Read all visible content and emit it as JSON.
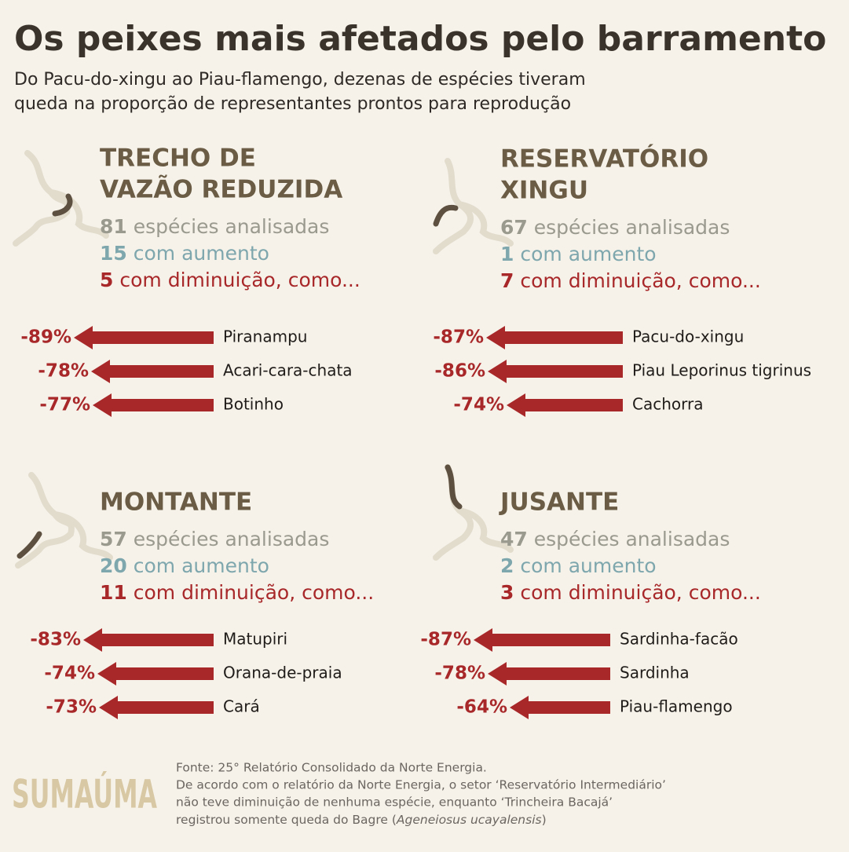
{
  "title": "Os peixes mais afetados pelo barramento",
  "subtitle": [
    "Do Pacu-do-xingu ao Piau-flamengo, dezenas de espécies tiveram",
    "queda na proporção de representantes prontos para reprodução"
  ],
  "chart_data": [
    {
      "type": "bar",
      "title": [
        "TRECHO DE",
        "VAZÃO REDUZIDA"
      ],
      "analyzed": 81,
      "analyzed_text": "espécies analisadas",
      "increase": 15,
      "increase_text": "com aumento",
      "decrease": 5,
      "decrease_text": "com diminuição, como...",
      "categories": [
        "Piranampu",
        "Acari-cara-chata",
        "Botinho"
      ],
      "values": [
        -89,
        -78,
        -77
      ],
      "value_labels": [
        "-89%",
        "-78%",
        "-77%"
      ],
      "xlim": [
        -100,
        0
      ],
      "color": "#a8282a"
    },
    {
      "type": "bar",
      "title": [
        "RESERVATÓRIO",
        "XINGU"
      ],
      "analyzed": 67,
      "analyzed_text": "espécies analisadas",
      "increase": 1,
      "increase_text": "com aumento",
      "decrease": 7,
      "decrease_text": "com diminuição, como...",
      "categories": [
        "Pacu-do-xingu",
        "Piau Leporinus tigrinus",
        "Cachorra"
      ],
      "values": [
        -87,
        -86,
        -74
      ],
      "value_labels": [
        "-87%",
        "-86%",
        "-74%"
      ],
      "xlim": [
        -100,
        0
      ],
      "color": "#a8282a"
    },
    {
      "type": "bar",
      "title": [
        "MONTANTE"
      ],
      "analyzed": 57,
      "analyzed_text": "espécies analisadas",
      "increase": 20,
      "increase_text": "com aumento",
      "decrease": 11,
      "decrease_text": "com diminuição, como...",
      "categories": [
        "Matupiri",
        "Orana-de-praia",
        "Cará"
      ],
      "values": [
        -83,
        -74,
        -73
      ],
      "value_labels": [
        "-83%",
        "-74%",
        "-73%"
      ],
      "xlim": [
        -100,
        0
      ],
      "color": "#a8282a"
    },
    {
      "type": "bar",
      "title": [
        "JUSANTE"
      ],
      "analyzed": 47,
      "analyzed_text": "espécies analisadas",
      "increase": 2,
      "increase_text": "com aumento",
      "decrease": 3,
      "decrease_text": "com diminuição, como...",
      "categories": [
        "Sardinha-facão",
        "Sardinha",
        "Piau-flamengo"
      ],
      "values": [
        -87,
        -78,
        -64
      ],
      "value_labels": [
        "-87%",
        "-78%",
        "-64%"
      ],
      "xlim": [
        -100,
        0
      ],
      "color": "#a8282a"
    }
  ],
  "source": "Fonte: 25° Relatório Consolidado da Norte Energia.",
  "note": [
    "De acordo com o relatório da Norte Energia, o setor ‘Reservatório Intermediário’",
    "não teve diminuição de nenhuma espécie, enquanto ‘Trincheira Bacajá’"
  ],
  "note_last": [
    "registrou somente queda do Bagre (",
    "Ageneiosus ucayalensis",
    ")"
  ],
  "logo": "SUMAÚMA"
}
